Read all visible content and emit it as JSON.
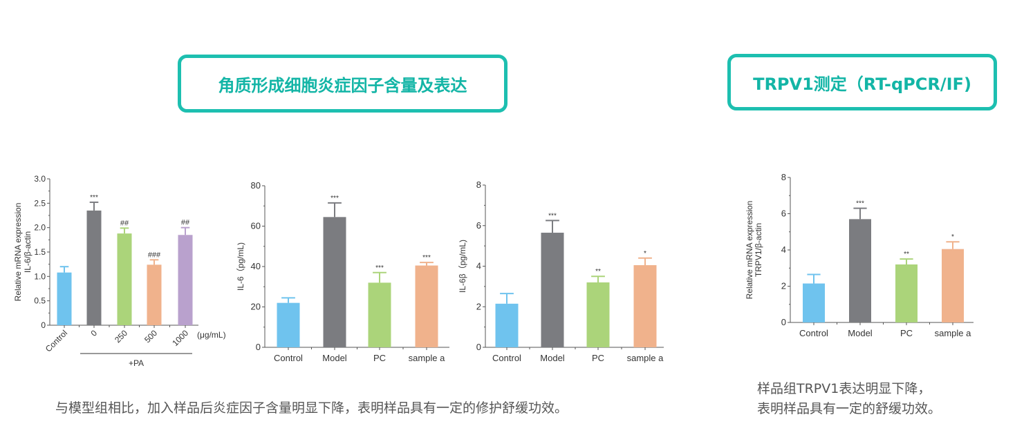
{
  "headers": {
    "left": "角质形成细胞炎症因子含量及表达",
    "right": "TRPV1测定（RT-qPCR/IF)"
  },
  "captions": {
    "left": "与模型组相比，加入样品后炎症因子含量明显下降，表明样品具有一定的修护舒缓功效。",
    "right_line1": "样品组TRPV1表达明显下降，",
    "right_line2": "表明样品具有一定的舒缓功效。"
  },
  "chart_data": [
    {
      "type": "bar",
      "ylabel": [
        "Relative mRNA expression",
        "IL-6/β-actin"
      ],
      "ylim": [
        0,
        3.0
      ],
      "yticks": [
        "0",
        "0.5",
        "1.0",
        "1.5",
        "2.0",
        "2.5",
        "3.0"
      ],
      "categories": [
        "Control",
        "0",
        "250",
        "500",
        "1000"
      ],
      "unit_label": "(μg/mL)",
      "group_label": "+PA",
      "values": [
        1.08,
        2.35,
        1.88,
        1.24,
        1.85
      ],
      "errors": [
        0.12,
        0.17,
        0.11,
        0.1,
        0.15
      ],
      "significance": [
        "",
        "***",
        "##",
        "###",
        "##"
      ],
      "colors": [
        "#6fc3ee",
        "#7b7c80",
        "#abd47a",
        "#f0b28c",
        "#b9a1cd"
      ]
    },
    {
      "type": "bar",
      "ylabel": [
        "IL-6（pg/mL)"
      ],
      "ylim": [
        0,
        80
      ],
      "yticks": [
        "0",
        "20",
        "40",
        "60",
        "80"
      ],
      "categories": [
        "Control",
        "Model",
        "PC",
        "sample a"
      ],
      "values": [
        22,
        64.5,
        32,
        40.5
      ],
      "errors": [
        2.5,
        7,
        5,
        1.5
      ],
      "significance": [
        "",
        "***",
        "***",
        "***"
      ],
      "colors": [
        "#6fc3ee",
        "#7b7c80",
        "#abd47a",
        "#f0b28c"
      ]
    },
    {
      "type": "bar",
      "ylabel": [
        "IL-6β（pg/mL)"
      ],
      "ylim": [
        0,
        8
      ],
      "yticks": [
        "0",
        "2",
        "4",
        "6",
        "8"
      ],
      "categories": [
        "Control",
        "Model",
        "PC",
        "sample a"
      ],
      "values": [
        2.15,
        5.65,
        3.2,
        4.05
      ],
      "errors": [
        0.5,
        0.6,
        0.3,
        0.35
      ],
      "significance": [
        "",
        "***",
        "**",
        "*"
      ],
      "colors": [
        "#6fc3ee",
        "#7b7c80",
        "#abd47a",
        "#f0b28c"
      ]
    },
    {
      "type": "bar",
      "ylabel": [
        "Relative mRNA expression",
        "TRPV1/β-actin"
      ],
      "ylim": [
        0,
        8
      ],
      "yticks": [
        "0",
        "2",
        "4",
        "6",
        "8"
      ],
      "categories": [
        "Control",
        "Model",
        "PC",
        "sample a"
      ],
      "values": [
        2.15,
        5.7,
        3.2,
        4.05
      ],
      "errors": [
        0.5,
        0.6,
        0.3,
        0.4
      ],
      "significance": [
        "",
        "***",
        "**",
        "*"
      ],
      "colors": [
        "#6fc3ee",
        "#7b7c80",
        "#abd47a",
        "#f0b28c"
      ]
    }
  ]
}
